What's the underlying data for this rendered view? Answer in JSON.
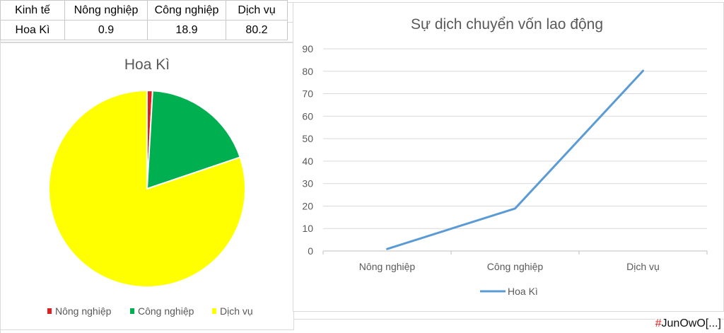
{
  "table": {
    "headers": [
      "Kinh tế",
      "Nông nghiệp",
      "Công nghiệp",
      "Dịch vụ"
    ],
    "rows": [
      [
        "Hoa Kì",
        "0.9",
        "18.9",
        "80.2"
      ]
    ]
  },
  "chart_data": [
    {
      "type": "pie",
      "title": "Hoa Kì",
      "categories": [
        "Nông nghiệp",
        "Công nghiệp",
        "Dịch vụ"
      ],
      "values": [
        0.9,
        18.9,
        80.2
      ],
      "colors": [
        "#e01f1f",
        "#00b050",
        "#ffff00"
      ],
      "legend": "bottom"
    },
    {
      "type": "line",
      "title": "Sự dịch chuyển vốn lao động",
      "categories": [
        "Nông nghiệp",
        "Công nghiệp",
        "Dịch vụ"
      ],
      "series": [
        {
          "name": "Hoa Kì",
          "values": [
            0.9,
            18.9,
            80.2
          ],
          "color": "#5b9bd5"
        }
      ],
      "ylim": [
        0,
        90
      ],
      "yticks": [
        "0",
        "10",
        "20",
        "30",
        "40",
        "50",
        "60",
        "70",
        "80",
        "90"
      ],
      "grid": true,
      "legend": "bottom"
    }
  ],
  "watermark": {
    "hash": "#",
    "text": "JunOwO[...]"
  }
}
